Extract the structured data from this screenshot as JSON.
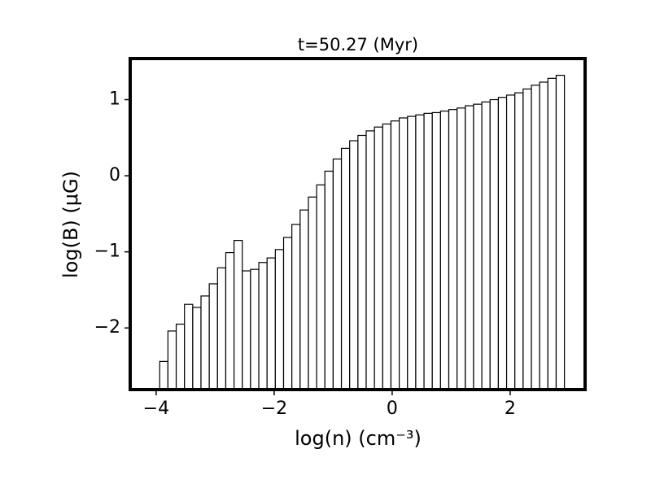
{
  "chart_data": {
    "type": "histogram",
    "title": "t=50.27 (Myr)",
    "x_label": "log(n) (cm⁻³)",
    "y_label": "log(B) (μG)",
    "bins": [
      -3.94,
      -3.8,
      -3.66,
      -3.52,
      -3.38,
      -3.24,
      -3.1,
      -2.96,
      -2.82,
      -2.68,
      -2.54,
      -2.4,
      -2.26,
      -2.12,
      -1.98,
      -1.84,
      -1.7,
      -1.56,
      -1.42,
      -1.28,
      -1.14,
      -1.0,
      -0.86,
      -0.72,
      -0.58,
      -0.44,
      -0.3,
      -0.16,
      -0.02,
      0.12,
      0.26,
      0.4,
      0.54,
      0.68,
      0.82,
      0.96,
      1.1,
      1.24,
      1.38,
      1.52,
      1.66,
      1.8,
      1.94,
      2.08,
      2.22,
      2.36,
      2.5,
      2.64,
      2.78,
      2.92
    ],
    "values": [
      -2.44,
      -2.04,
      -1.95,
      -1.69,
      -1.73,
      -1.58,
      -1.42,
      -1.21,
      -1.01,
      -0.85,
      -1.25,
      -1.23,
      -1.14,
      -1.08,
      -0.97,
      -0.81,
      -0.64,
      -0.45,
      -0.28,
      -0.12,
      0.06,
      0.22,
      0.36,
      0.46,
      0.53,
      0.59,
      0.64,
      0.68,
      0.72,
      0.76,
      0.78,
      0.8,
      0.82,
      0.83,
      0.85,
      0.87,
      0.89,
      0.92,
      0.94,
      0.97,
      1.0,
      1.03,
      1.06,
      1.09,
      1.14,
      1.19,
      1.23,
      1.28,
      1.32
    ],
    "color": "#ffffff",
    "edge_color": "#000000",
    "xlim": [
      -4.44,
      3.27
    ],
    "ylim": [
      -2.81,
      1.54
    ],
    "xticks": [
      {
        "value": -4,
        "label": "−4"
      },
      {
        "value": -2,
        "label": "−2"
      },
      0,
      2
    ],
    "yticks": [
      {
        "value": -2,
        "label": "−2"
      },
      {
        "value": -1,
        "label": "−1"
      },
      0,
      1
    ],
    "grid": false
  }
}
